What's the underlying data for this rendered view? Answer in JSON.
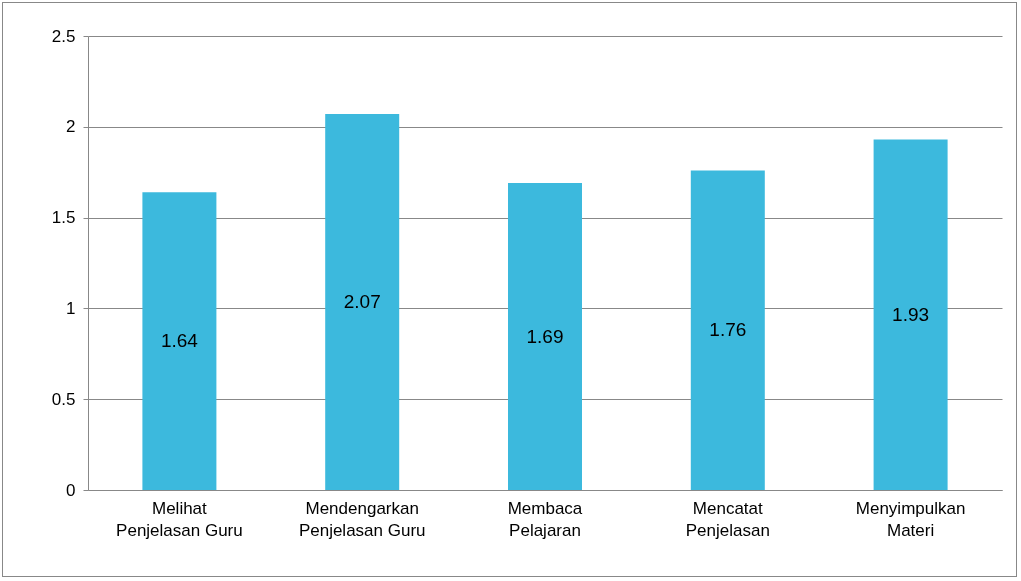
{
  "chart_data": {
    "type": "bar",
    "categories": [
      "Melihat Penjelasan Guru",
      "Mendengarkan Penjelasan Guru",
      "Membaca Pelajaran",
      "Mencatat Penjelasan",
      "Menyimpulkan Materi"
    ],
    "values": [
      1.64,
      2.07,
      1.69,
      1.76,
      1.93
    ],
    "color": "#3cb9dd",
    "ylim": [
      0,
      2.5
    ],
    "yticks": [
      0,
      0.5,
      1,
      1.5,
      2,
      2.5
    ],
    "grid": "y",
    "data_labels": true
  }
}
